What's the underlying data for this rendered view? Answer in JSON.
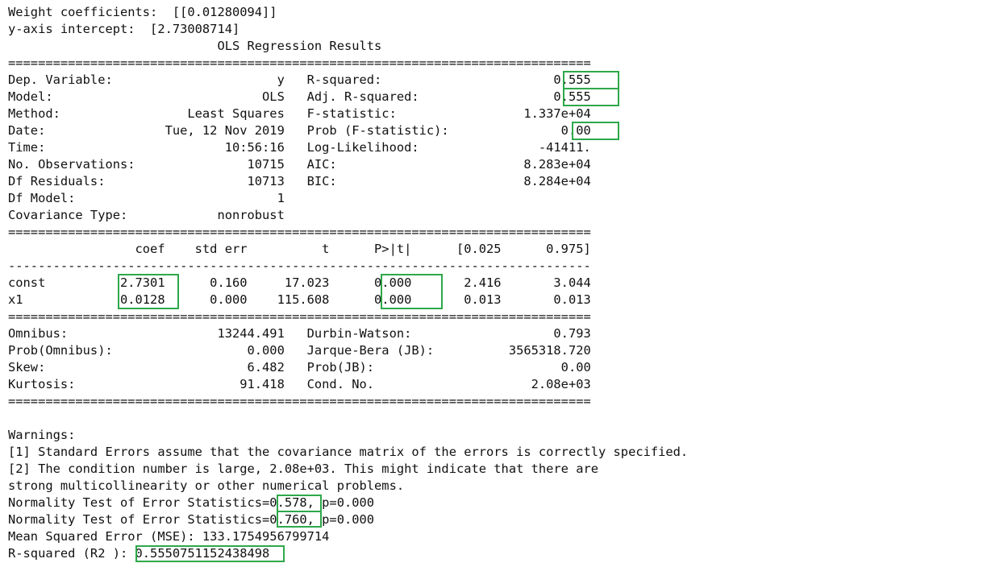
{
  "output_lines": [
    "Weight coefficients:  [[0.01280094]]",
    "y-axis intercept:  [2.73008714]",
    "                            OLS Regression Results                            ",
    "==============================================================================",
    "Dep. Variable:                      y   R-squared:                       0.555",
    "Model:                            OLS   Adj. R-squared:                  0.555",
    "Method:                 Least Squares   F-statistic:                 1.337e+04",
    "Date:                Tue, 12 Nov 2019   Prob (F-statistic):               0.00",
    "Time:                        10:56:16   Log-Likelihood:                -41411.",
    "No. Observations:               10715   AIC:                         8.283e+04",
    "Df Residuals:                   10713   BIC:                         8.284e+04",
    "Df Model:                           1                                         ",
    "Covariance Type:            nonrobust                                         ",
    "==============================================================================",
    "                 coef    std err          t      P>|t|      [0.025      0.975]",
    "------------------------------------------------------------------------------",
    "const          2.7301      0.160     17.023      0.000       2.416       3.044",
    "x1             0.0128      0.000    115.608      0.000       0.013       0.013",
    "==============================================================================",
    "Omnibus:                    13244.491   Durbin-Watson:                   0.793",
    "Prob(Omnibus):                  0.000   Jarque-Bera (JB):          3565318.720",
    "Skew:                           6.482   Prob(JB):                         0.00",
    "Kurtosis:                      91.418   Cond. No.                     2.08e+03",
    "==============================================================================",
    "",
    "Warnings:",
    "[1] Standard Errors assume that the covariance matrix of the errors is correctly specified.",
    "[2] The condition number is large, 2.08e+03. This might indicate that there are",
    "strong multicollinearity or other numerical problems.",
    "Normality Test of Error Statistics=0.578, p=0.000",
    "Normality Test of Error Statistics=0.760, p=0.000",
    "Mean Squared Error (MSE): 133.1754956799714",
    "R-squared (R2 ): 0.5550751152438498"
  ],
  "highlight_color": "#2ea84a"
}
